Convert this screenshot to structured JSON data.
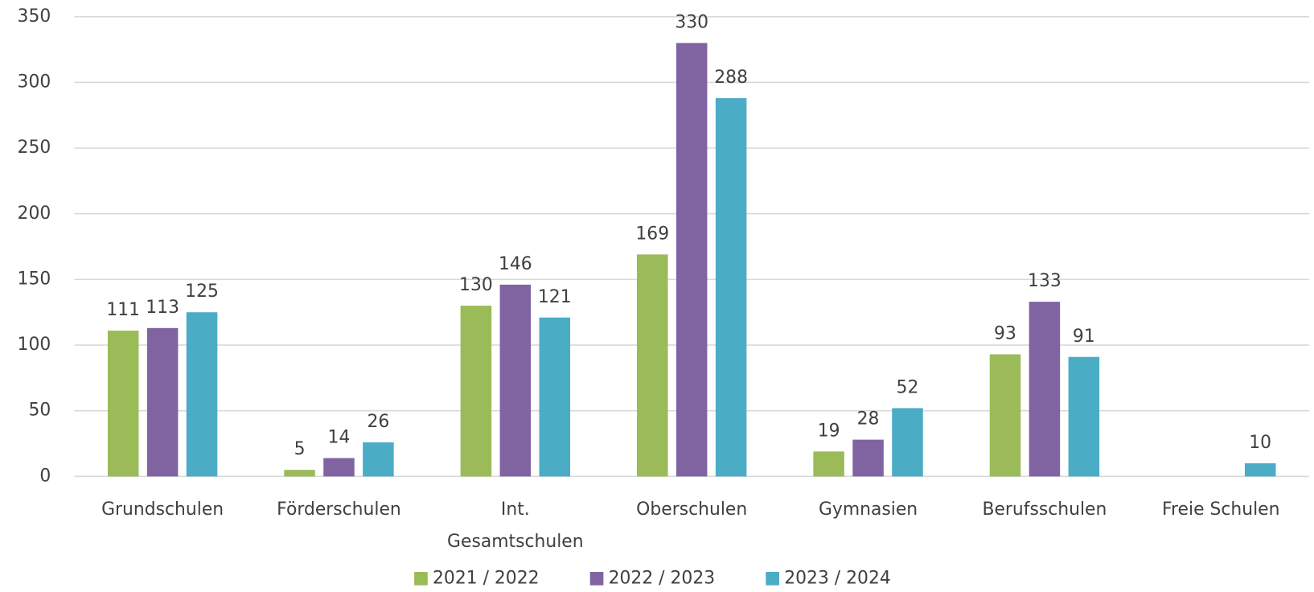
{
  "chart_data": {
    "type": "bar",
    "categories": [
      "Grundschulen",
      "Förderschulen",
      "Int. Gesamtschulen",
      "Oberschulen",
      "Gymnasien",
      "Berufsschulen",
      "Freie Schulen"
    ],
    "series": [
      {
        "name": "2021 / 2022",
        "color": "#9bbb59",
        "values": [
          111,
          5,
          130,
          169,
          19,
          93,
          null
        ]
      },
      {
        "name": "2022 / 2023",
        "color": "#8064a2",
        "values": [
          113,
          14,
          146,
          330,
          28,
          133,
          null
        ]
      },
      {
        "name": "2023 / 2024",
        "color": "#4bacc6",
        "values": [
          125,
          26,
          121,
          288,
          52,
          91,
          10
        ]
      }
    ],
    "ylim": [
      0,
      350
    ],
    "yticks": [
      0,
      50,
      100,
      150,
      200,
      250,
      300,
      350
    ],
    "grid": true,
    "legend": "bottom"
  }
}
